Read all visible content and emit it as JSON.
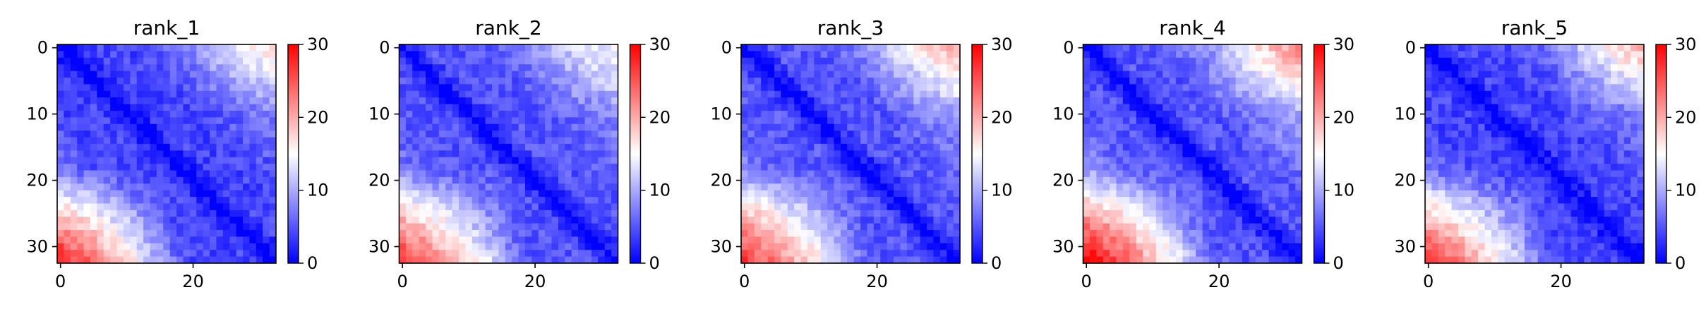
{
  "chart_data": [
    {
      "type": "heatmap",
      "title": "rank_1",
      "n": 33,
      "xticks": [
        0,
        20
      ],
      "yticks": [
        0,
        10,
        20,
        30
      ],
      "vmin": 0,
      "vmax": 30,
      "colorbar_ticks": [
        0,
        10,
        20,
        30
      ],
      "cmap": "bwr",
      "approx_values": {
        "diagonal": 0,
        "near_diagonal": 4,
        "mid_offdiag": 9,
        "top_right_corner": 17,
        "bottom_left_corner": 26
      }
    },
    {
      "type": "heatmap",
      "title": "rank_2",
      "n": 33,
      "xticks": [
        0,
        20
      ],
      "yticks": [
        0,
        10,
        20,
        30
      ],
      "vmin": 0,
      "vmax": 30,
      "colorbar_ticks": [
        0,
        10,
        20,
        30
      ],
      "cmap": "bwr",
      "approx_values": {
        "diagonal": 0,
        "near_diagonal": 5,
        "mid_offdiag": 10,
        "top_right_corner": 15,
        "bottom_left_corner": 25
      }
    },
    {
      "type": "heatmap",
      "title": "rank_3",
      "n": 33,
      "xticks": [
        0,
        20
      ],
      "yticks": [
        0,
        10,
        20,
        30
      ],
      "vmin": 0,
      "vmax": 30,
      "colorbar_ticks": [
        0,
        10,
        20,
        30
      ],
      "cmap": "bwr",
      "approx_values": {
        "diagonal": 0,
        "near_diagonal": 5,
        "mid_offdiag": 11,
        "top_right_corner": 20,
        "bottom_left_corner": 25
      }
    },
    {
      "type": "heatmap",
      "title": "rank_4",
      "n": 33,
      "xticks": [
        0,
        20
      ],
      "yticks": [
        0,
        10,
        20,
        30
      ],
      "vmin": 0,
      "vmax": 30,
      "colorbar_ticks": [
        0,
        10,
        20,
        30
      ],
      "cmap": "bwr",
      "approx_values": {
        "diagonal": 0,
        "near_diagonal": 5,
        "mid_offdiag": 12,
        "top_right_corner": 22,
        "bottom_left_corner": 28
      }
    },
    {
      "type": "heatmap",
      "title": "rank_5",
      "n": 33,
      "xticks": [
        0,
        20
      ],
      "yticks": [
        0,
        10,
        20,
        30
      ],
      "vmin": 0,
      "vmax": 30,
      "colorbar_ticks": [
        0,
        10,
        20,
        30
      ],
      "cmap": "bwr",
      "approx_values": {
        "diagonal": 0,
        "near_diagonal": 4,
        "mid_offdiag": 9,
        "top_right_corner": 20,
        "bottom_left_corner": 25
      }
    }
  ],
  "colors": {
    "low": "#0000ff",
    "mid": "#ffffff",
    "high": "#ff0000"
  }
}
